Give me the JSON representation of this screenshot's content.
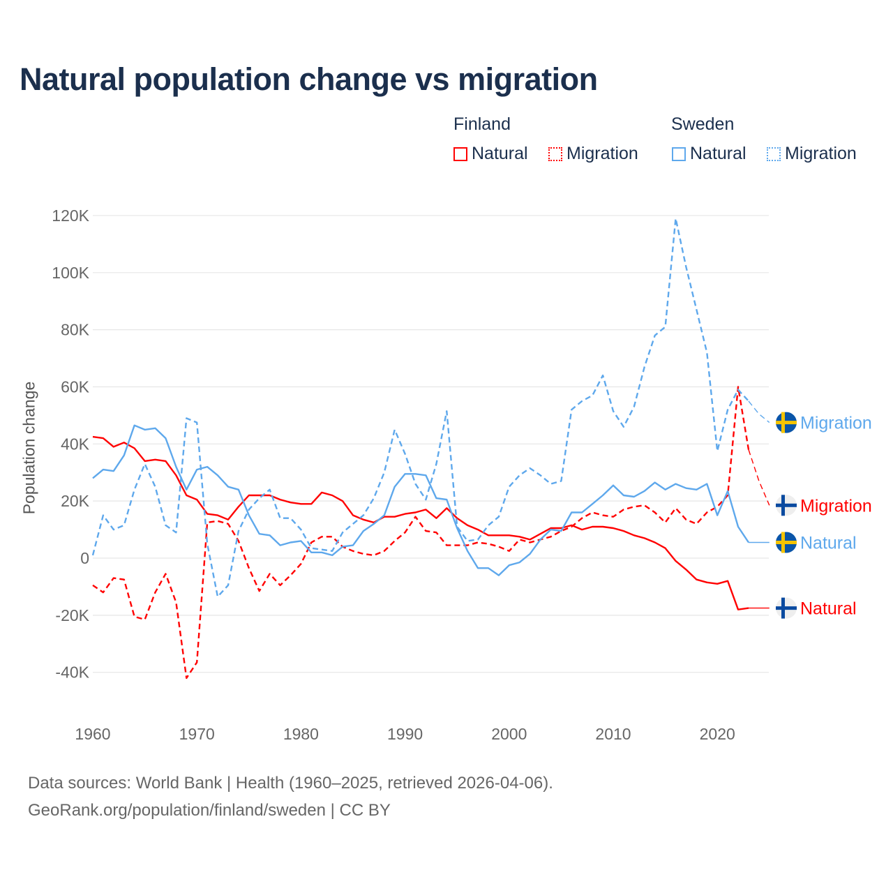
{
  "chart_data": {
    "type": "line",
    "title": "Natural population change vs migration",
    "xlabel": "",
    "ylabel": "Population change",
    "xlim": [
      1960,
      2025
    ],
    "ylim": [
      -50000,
      125000
    ],
    "x_ticks": [
      1960,
      1970,
      1980,
      1990,
      2000,
      2010,
      2020
    ],
    "x_tick_labels": [
      "1960",
      "1970",
      "1980",
      "1990",
      "2000",
      "2010",
      "2020"
    ],
    "y_ticks": [
      -40000,
      -20000,
      0,
      20000,
      40000,
      60000,
      80000,
      100000,
      120000
    ],
    "y_tick_labels": [
      "-40K",
      "-20K",
      "0",
      "20K",
      "40K",
      "60K",
      "80K",
      "100K",
      "120K"
    ],
    "grid": true,
    "legend_placement": "top-right",
    "legend": {
      "groups": [
        {
          "label": "Finland",
          "items": [
            "Natural",
            "Migration"
          ]
        },
        {
          "label": "Sweden",
          "items": [
            "Natural",
            "Migration"
          ]
        }
      ]
    },
    "x_start": 1960,
    "series": [
      {
        "name": "Finland Natural",
        "country": "Finland",
        "kind": "Natural",
        "end_label": "Natural",
        "color": "#ff0000",
        "dashed": false,
        "values": [
          42.5,
          42,
          39,
          40.5,
          38.5,
          34,
          34.5,
          34,
          29,
          22,
          20.5,
          15.5,
          15,
          13.5,
          18,
          22,
          22,
          22,
          20.5,
          19.5,
          19,
          19,
          23,
          22,
          20,
          15,
          13.5,
          12.5,
          14.5,
          14.5,
          15.5,
          16,
          17,
          14,
          17.5,
          14,
          11.5,
          10,
          8,
          8,
          8,
          7.5,
          6.5,
          8.5,
          10.5,
          10.5,
          11.5,
          10,
          11,
          11,
          10.5,
          9.5,
          8,
          7,
          5.5,
          3.5,
          -1,
          -4,
          -7.5,
          -8.5,
          -9,
          -8,
          -18,
          -17.5,
          -17.5,
          -17.5
        ]
      },
      {
        "name": "Finland Migration",
        "country": "Finland",
        "kind": "Migration",
        "end_label": "Migration",
        "color": "#ff0000",
        "dashed": true,
        "values": [
          -9.5,
          -12,
          -7,
          -7.5,
          -20.5,
          -21.5,
          -12,
          -5.5,
          -15.5,
          -42,
          -36.5,
          12.5,
          13,
          12,
          6,
          -3.5,
          -11.5,
          -5.5,
          -9.5,
          -6,
          -2,
          5.5,
          7.5,
          7.5,
          4,
          2.5,
          1.5,
          1,
          2.5,
          6,
          9,
          14.5,
          9.5,
          9,
          4.5,
          4.5,
          4.5,
          5.5,
          5,
          4,
          2.5,
          6.5,
          5.5,
          6.5,
          7.5,
          9.5,
          11,
          14,
          16,
          15,
          14.5,
          17,
          18,
          18.5,
          16,
          12.5,
          17.5,
          13.5,
          12,
          16,
          18,
          22,
          60,
          38,
          27,
          18.5
        ]
      },
      {
        "name": "Sweden Natural",
        "country": "Sweden",
        "kind": "Natural",
        "end_label": "Natural",
        "color": "#5ea8ec",
        "dashed": false,
        "values": [
          28,
          31,
          30.5,
          36,
          46.5,
          45,
          45.5,
          42,
          32,
          24,
          31,
          32,
          29,
          25,
          24,
          15,
          8.5,
          8,
          4.5,
          5.5,
          6,
          2,
          2,
          1,
          4,
          4.5,
          9.5,
          12,
          15,
          25,
          29.5,
          29.5,
          29,
          21,
          20.5,
          10.5,
          2.5,
          -3.5,
          -3.5,
          -6,
          -2.5,
          -1.5,
          1.5,
          6.5,
          10,
          9.5,
          16,
          16,
          19,
          22,
          25.5,
          22,
          21.5,
          23.5,
          26.5,
          24,
          26,
          24.5,
          24,
          26,
          15,
          23.5,
          11,
          5.5,
          5.5,
          5.5
        ]
      },
      {
        "name": "Sweden Migration",
        "country": "Sweden",
        "kind": "Migration",
        "end_label": "Migration",
        "color": "#5ea8ec",
        "dashed": true,
        "values": [
          1,
          15,
          10,
          11.5,
          24,
          33,
          25,
          11.5,
          9,
          49,
          47.5,
          5,
          -13.5,
          -9.5,
          9.5,
          17,
          21,
          24,
          14,
          14,
          10,
          3.5,
          3,
          2.5,
          9,
          12,
          15,
          21,
          30,
          45,
          36.5,
          26,
          20.5,
          33,
          51.5,
          11,
          6,
          6.5,
          11.5,
          14.5,
          25,
          29,
          31.5,
          29,
          26,
          27,
          52,
          55,
          57,
          64,
          51.5,
          46,
          53,
          67,
          78,
          81,
          119,
          102,
          87,
          72,
          37.5,
          52,
          59,
          55,
          50.5,
          47.5
        ]
      }
    ],
    "value_unit_multiplier": 1000
  },
  "legend_labels": {
    "finland": "Finland",
    "sweden": "Sweden",
    "natural": "Natural",
    "migration": "Migration"
  },
  "colors": {
    "finland": "#ff0000",
    "sweden": "#5ea8ec",
    "title": "#1b2f4d"
  },
  "footer": {
    "line1": "Data sources: World Bank | Health (1960–2025, retrieved 2026-04-06).",
    "line2": "GeoRank.org/population/finland/sweden | CC BY"
  }
}
